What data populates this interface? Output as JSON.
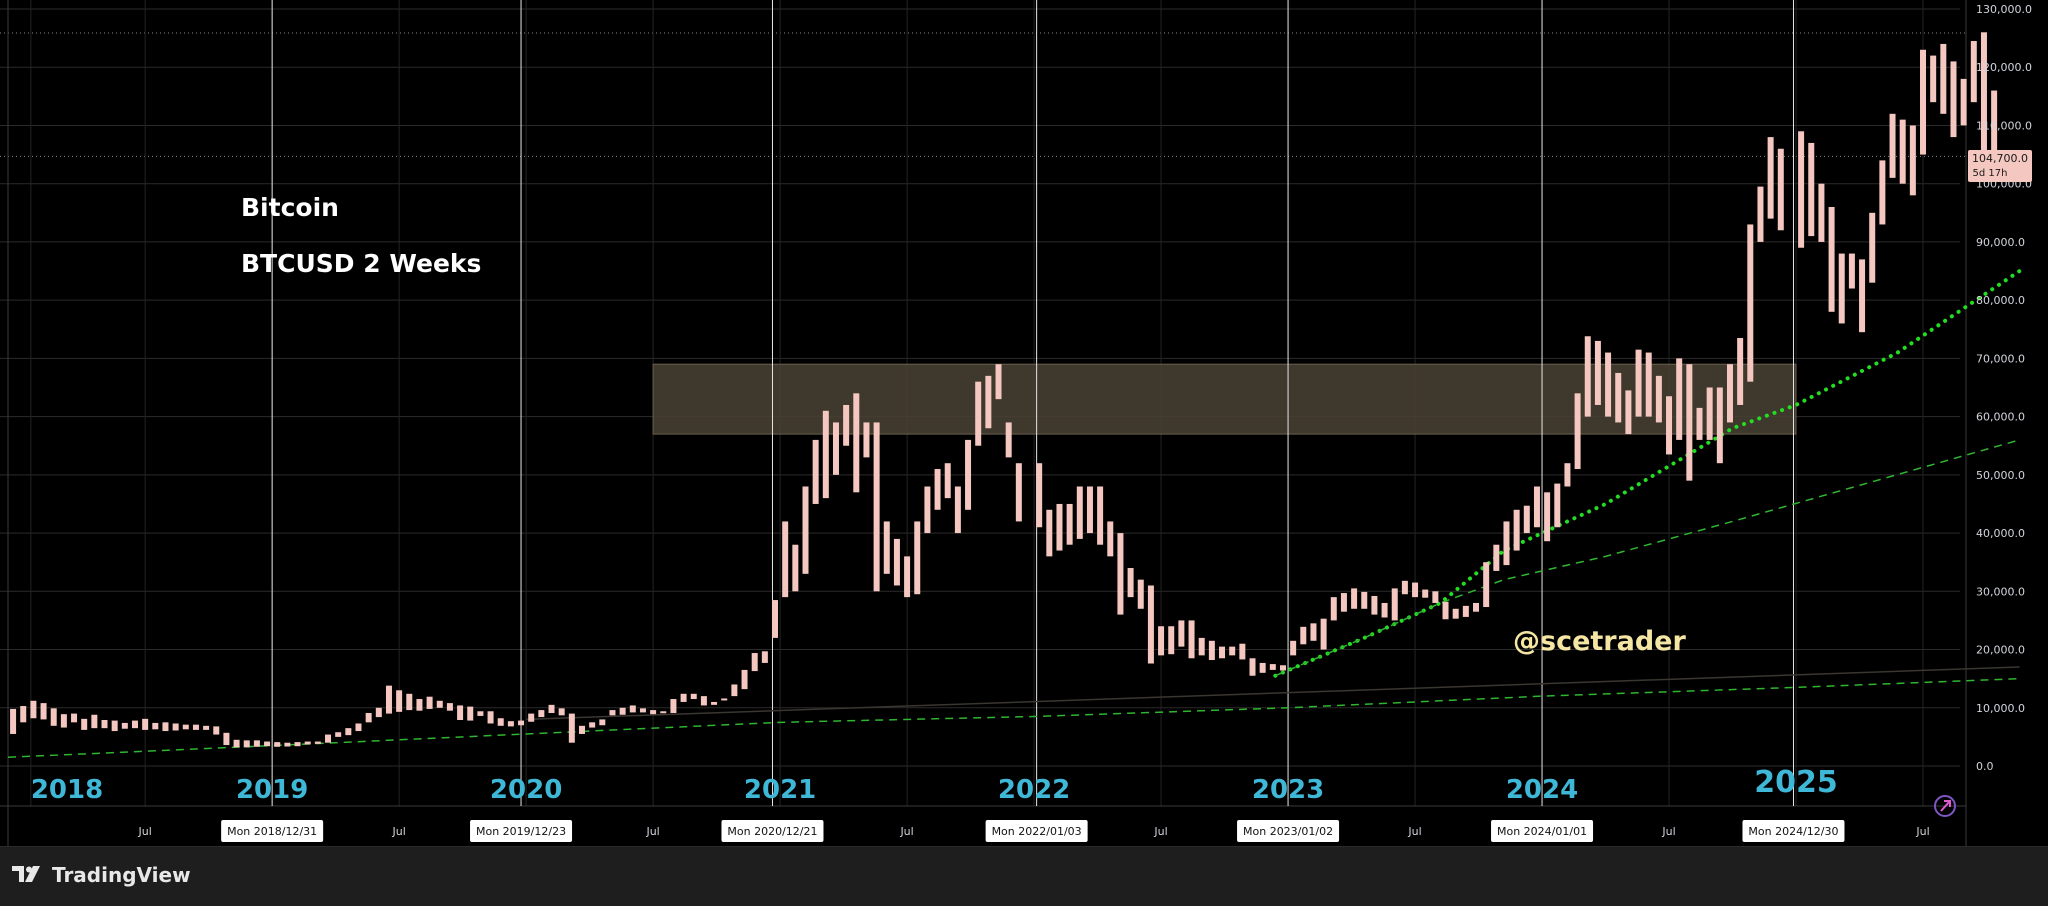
{
  "app": {
    "brand": "TradingView"
  },
  "overlay": {
    "title": "Bitcoin",
    "subtitle": "BTCUSD 2 Weeks",
    "watermark": "@scetrader"
  },
  "price_label": {
    "price": "104,700.0",
    "countdown": "5d 17h"
  },
  "colors": {
    "background": "#000000",
    "bar": "#f4c7c0",
    "year_label": "#3fb8d8",
    "zone": "#4a4234",
    "trend_dotted": "#22dd22",
    "trend_dashed": "#2fb52f",
    "watermark": "#f5e6a3",
    "price_label_bg": "#f4c7c0"
  },
  "chart_data": {
    "type": "ohlc",
    "symbol": "BTCUSD",
    "interval": "2 Weeks",
    "ylim": [
      0,
      130000
    ],
    "y_ticks": [
      "0.0",
      "10,000.0",
      "20,000.0",
      "30,000.0",
      "40,000.0",
      "50,000.0",
      "60,000.0",
      "70,000.0",
      "80,000.0",
      "90,000.0",
      "100,000.0",
      "110,000.0",
      "120,000.0",
      "130,000.0"
    ],
    "year_labels": [
      {
        "label": "2018",
        "date": 2018.05
      },
      {
        "label": "2019",
        "date": 2019.0
      },
      {
        "label": "2020",
        "date": 2020.0
      },
      {
        "label": "2021",
        "date": 2021.0
      },
      {
        "label": "2022",
        "date": 2022.0
      },
      {
        "label": "2023",
        "date": 2023.0
      },
      {
        "label": "2024",
        "date": 2024.0
      },
      {
        "label": "2025",
        "date": 2025.0
      }
    ],
    "month_labels": [
      {
        "label": "Jul",
        "date": 2018.5
      },
      {
        "label": "Jul",
        "date": 2019.5
      },
      {
        "label": "Jul",
        "date": 2020.5
      },
      {
        "label": "Jul",
        "date": 2021.5
      },
      {
        "label": "Jul",
        "date": 2022.5
      },
      {
        "label": "Jul",
        "date": 2023.5
      },
      {
        "label": "Jul",
        "date": 2024.5
      },
      {
        "label": "Jul",
        "date": 2025.5
      }
    ],
    "date_markers": [
      {
        "label": "Mon 2018/12/31",
        "date": 2019.0
      },
      {
        "label": "Mon 2019/12/23",
        "date": 2019.98
      },
      {
        "label": "Mon 2020/12/21",
        "date": 2020.97
      },
      {
        "label": "Mon 2022/01/03",
        "date": 2022.01
      },
      {
        "label": "Mon 2023/01/02",
        "date": 2023.0
      },
      {
        "label": "Mon 2024/01/01",
        "date": 2024.0
      },
      {
        "label": "Mon 2024/12/30",
        "date": 2024.99
      }
    ],
    "resistance_zone": {
      "from": 2020.5,
      "to": 2025.0,
      "low": 57000,
      "high": 69000
    },
    "last_price": 104700,
    "trendlines": [
      {
        "style": "dotted",
        "points": [
          [
            2022.95,
            15500
          ],
          [
            2023.3,
            22000
          ],
          [
            2023.6,
            28000
          ],
          [
            2023.85,
            37000
          ],
          [
            2024.25,
            45000
          ],
          [
            2024.75,
            58000
          ],
          [
            2025.0,
            62000
          ],
          [
            2025.4,
            71000
          ],
          [
            2025.88,
            85000
          ]
        ]
      },
      {
        "style": "dashed",
        "points": [
          [
            2022.95,
            15500
          ],
          [
            2023.3,
            22000
          ],
          [
            2023.6,
            28000
          ],
          [
            2023.85,
            32000
          ],
          [
            2024.25,
            36000
          ],
          [
            2024.75,
            42000
          ],
          [
            2025.88,
            56000
          ]
        ]
      },
      {
        "style": "dashed",
        "points": [
          [
            2017.96,
            1500
          ],
          [
            2019.0,
            3500
          ],
          [
            2020.0,
            5500
          ],
          [
            2021.0,
            7500
          ],
          [
            2022.0,
            8500
          ],
          [
            2023.0,
            10000
          ],
          [
            2024.0,
            12000
          ],
          [
            2025.0,
            13500
          ],
          [
            2025.88,
            15000
          ]
        ]
      }
    ],
    "bars": [
      [
        2017.98,
        5500,
        9800
      ],
      [
        2018.02,
        7500,
        10300
      ],
      [
        2018.06,
        8200,
        11200
      ],
      [
        2018.1,
        8000,
        10800
      ],
      [
        2018.14,
        6900,
        9900
      ],
      [
        2018.18,
        6600,
        8900
      ],
      [
        2018.22,
        7500,
        9000
      ],
      [
        2018.26,
        6200,
        8100
      ],
      [
        2018.3,
        6500,
        8800
      ],
      [
        2018.34,
        6500,
        7900
      ],
      [
        2018.38,
        6000,
        7800
      ],
      [
        2018.42,
        6400,
        7400
      ],
      [
        2018.46,
        6500,
        7800
      ],
      [
        2018.5,
        6200,
        8100
      ],
      [
        2018.54,
        6300,
        7400
      ],
      [
        2018.58,
        6000,
        7500
      ],
      [
        2018.62,
        6100,
        7300
      ],
      [
        2018.66,
        6300,
        7100
      ],
      [
        2018.7,
        6200,
        7100
      ],
      [
        2018.74,
        6200,
        6900
      ],
      [
        2018.78,
        5400,
        6800
      ],
      [
        2018.82,
        3600,
        5700
      ],
      [
        2018.86,
        3200,
        4500
      ],
      [
        2018.9,
        3200,
        4400
      ],
      [
        2018.94,
        3300,
        4400
      ],
      [
        2018.98,
        3400,
        4200
      ],
      [
        2019.02,
        3300,
        4100
      ],
      [
        2019.06,
        3350,
        4000
      ],
      [
        2019.1,
        3400,
        4100
      ],
      [
        2019.14,
        3700,
        4200
      ],
      [
        2019.18,
        3800,
        4200
      ],
      [
        2019.22,
        4000,
        5400
      ],
      [
        2019.26,
        5000,
        5800
      ],
      [
        2019.3,
        5300,
        6500
      ],
      [
        2019.34,
        6000,
        7300
      ],
      [
        2019.38,
        7500,
        9100
      ],
      [
        2019.42,
        8400,
        10000
      ],
      [
        2019.46,
        9000,
        13800
      ],
      [
        2019.5,
        9300,
        13000
      ],
      [
        2019.54,
        9600,
        12400
      ],
      [
        2019.58,
        9500,
        11500
      ],
      [
        2019.62,
        9800,
        11900
      ],
      [
        2019.66,
        10000,
        11200
      ],
      [
        2019.7,
        9500,
        10800
      ],
      [
        2019.74,
        7900,
        10400
      ],
      [
        2019.78,
        7800,
        10200
      ],
      [
        2019.82,
        8600,
        9400
      ],
      [
        2019.86,
        7300,
        9400
      ],
      [
        2019.9,
        6900,
        8200
      ],
      [
        2019.94,
        6800,
        7700
      ],
      [
        2019.98,
        7000,
        7800
      ],
      [
        2020.02,
        7600,
        9000
      ],
      [
        2020.06,
        8400,
        9600
      ],
      [
        2020.1,
        9100,
        10500
      ],
      [
        2020.14,
        8700,
        9900
      ],
      [
        2020.18,
        4000,
        9000
      ],
      [
        2020.22,
        5500,
        6900
      ],
      [
        2020.26,
        6600,
        7500
      ],
      [
        2020.3,
        7000,
        8000
      ],
      [
        2020.34,
        8700,
        9600
      ],
      [
        2020.38,
        8800,
        10000
      ],
      [
        2020.42,
        9200,
        10400
      ],
      [
        2020.46,
        9200,
        9900
      ],
      [
        2020.5,
        8900,
        9600
      ],
      [
        2020.54,
        9100,
        9400
      ],
      [
        2020.58,
        9100,
        11500
      ],
      [
        2020.62,
        11000,
        12400
      ],
      [
        2020.66,
        11500,
        12400
      ],
      [
        2020.7,
        10400,
        12000
      ],
      [
        2020.74,
        10500,
        11000
      ],
      [
        2020.78,
        11300,
        11600
      ],
      [
        2020.82,
        12000,
        14000
      ],
      [
        2020.86,
        13200,
        16500
      ],
      [
        2020.9,
        16300,
        19400
      ],
      [
        2020.94,
        17700,
        19700
      ],
      [
        2020.98,
        22000,
        28500
      ],
      [
        2021.02,
        29000,
        42000
      ],
      [
        2021.06,
        30000,
        38000
      ],
      [
        2021.1,
        33000,
        48000
      ],
      [
        2021.14,
        45000,
        56000
      ],
      [
        2021.18,
        46000,
        61000
      ],
      [
        2021.22,
        50000,
        59000
      ],
      [
        2021.26,
        55000,
        62000
      ],
      [
        2021.3,
        47000,
        64000
      ],
      [
        2021.34,
        53000,
        59000
      ],
      [
        2021.38,
        30000,
        59000
      ],
      [
        2021.42,
        33000,
        42000
      ],
      [
        2021.46,
        31000,
        39000
      ],
      [
        2021.5,
        29000,
        36000
      ],
      [
        2021.54,
        29500,
        42000
      ],
      [
        2021.58,
        40000,
        48000
      ],
      [
        2021.62,
        44000,
        51000
      ],
      [
        2021.66,
        46000,
        52000
      ],
      [
        2021.7,
        40000,
        48000
      ],
      [
        2021.74,
        44000,
        56000
      ],
      [
        2021.78,
        55000,
        66000
      ],
      [
        2021.82,
        58000,
        67000
      ],
      [
        2021.86,
        63000,
        69000
      ],
      [
        2021.9,
        53000,
        59000
      ],
      [
        2021.94,
        42000,
        52000
      ],
      [
        2022.02,
        41000,
        52000
      ],
      [
        2022.06,
        36000,
        44000
      ],
      [
        2022.1,
        37000,
        45000
      ],
      [
        2022.14,
        38000,
        45000
      ],
      [
        2022.18,
        39000,
        48000
      ],
      [
        2022.22,
        40000,
        48000
      ],
      [
        2022.26,
        38000,
        48000
      ],
      [
        2022.3,
        36000,
        42000
      ],
      [
        2022.34,
        26000,
        40000
      ],
      [
        2022.38,
        29000,
        34000
      ],
      [
        2022.42,
        27000,
        32000
      ],
      [
        2022.46,
        17600,
        31000
      ],
      [
        2022.5,
        19000,
        24000
      ],
      [
        2022.54,
        19200,
        24000
      ],
      [
        2022.58,
        20500,
        25000
      ],
      [
        2022.62,
        18500,
        25000
      ],
      [
        2022.66,
        19000,
        22000
      ],
      [
        2022.7,
        18200,
        21500
      ],
      [
        2022.74,
        18500,
        20500
      ],
      [
        2022.78,
        19000,
        20500
      ],
      [
        2022.82,
        18300,
        21000
      ],
      [
        2022.86,
        15500,
        18500
      ],
      [
        2022.9,
        16000,
        17700
      ],
      [
        2022.94,
        16500,
        17500
      ],
      [
        2022.98,
        16400,
        17300
      ],
      [
        2023.02,
        19000,
        21500
      ],
      [
        2023.06,
        20900,
        23900
      ],
      [
        2023.1,
        21500,
        24500
      ],
      [
        2023.14,
        20000,
        25300
      ],
      [
        2023.18,
        25000,
        29000
      ],
      [
        2023.22,
        26500,
        29700
      ],
      [
        2023.26,
        27000,
        30500
      ],
      [
        2023.3,
        27000,
        29900
      ],
      [
        2023.34,
        26000,
        29200
      ],
      [
        2023.38,
        25500,
        28000
      ],
      [
        2023.42,
        25000,
        30500
      ],
      [
        2023.46,
        29500,
        31800
      ],
      [
        2023.5,
        29000,
        31500
      ],
      [
        2023.54,
        28900,
        30300
      ],
      [
        2023.58,
        28000,
        30000
      ],
      [
        2023.62,
        25200,
        28200
      ],
      [
        2023.66,
        25300,
        27000
      ],
      [
        2023.7,
        25600,
        27500
      ],
      [
        2023.74,
        26500,
        28000
      ],
      [
        2023.78,
        27300,
        35000
      ],
      [
        2023.82,
        33500,
        38000
      ],
      [
        2023.86,
        34500,
        42000
      ],
      [
        2023.9,
        37000,
        44000
      ],
      [
        2023.94,
        40000,
        44700
      ],
      [
        2023.98,
        41000,
        48000
      ],
      [
        2024.02,
        38600,
        47000
      ],
      [
        2024.06,
        41000,
        48500
      ],
      [
        2024.1,
        48000,
        52000
      ],
      [
        2024.14,
        51000,
        64000
      ],
      [
        2024.18,
        60000,
        73800
      ],
      [
        2024.22,
        62000,
        73000
      ],
      [
        2024.26,
        60000,
        71000
      ],
      [
        2024.3,
        59000,
        67500
      ],
      [
        2024.34,
        57000,
        64500
      ],
      [
        2024.38,
        60000,
        71500
      ],
      [
        2024.42,
        60000,
        71000
      ],
      [
        2024.46,
        59000,
        67000
      ],
      [
        2024.5,
        53500,
        63500
      ],
      [
        2024.54,
        56000,
        70000
      ],
      [
        2024.58,
        49000,
        69000
      ],
      [
        2024.62,
        56000,
        61500
      ],
      [
        2024.66,
        56000,
        65000
      ],
      [
        2024.7,
        52000,
        65000
      ],
      [
        2024.74,
        59000,
        69000
      ],
      [
        2024.78,
        62000,
        73500
      ],
      [
        2024.82,
        66000,
        93000
      ],
      [
        2024.86,
        90000,
        99500
      ],
      [
        2024.9,
        94000,
        108000
      ],
      [
        2024.94,
        92000,
        106000
      ],
      [
        2025.02,
        89000,
        109000
      ],
      [
        2025.06,
        91000,
        107000
      ],
      [
        2025.1,
        90000,
        100000
      ],
      [
        2025.14,
        78000,
        96000
      ],
      [
        2025.18,
        76000,
        88000
      ],
      [
        2025.22,
        82000,
        88000
      ],
      [
        2025.26,
        74500,
        87000
      ],
      [
        2025.3,
        83000,
        95000
      ],
      [
        2025.34,
        93000,
        104000
      ],
      [
        2025.38,
        101000,
        112000
      ],
      [
        2025.42,
        100000,
        111000
      ],
      [
        2025.46,
        98000,
        110000
      ],
      [
        2025.5,
        105000,
        123000
      ],
      [
        2025.54,
        114000,
        122000
      ],
      [
        2025.58,
        112000,
        124000
      ],
      [
        2025.62,
        108000,
        121000
      ],
      [
        2025.66,
        110000,
        118000
      ],
      [
        2025.7,
        114000,
        124500
      ],
      [
        2025.74,
        103000,
        126000
      ],
      [
        2025.78,
        104700,
        116000
      ]
    ]
  }
}
